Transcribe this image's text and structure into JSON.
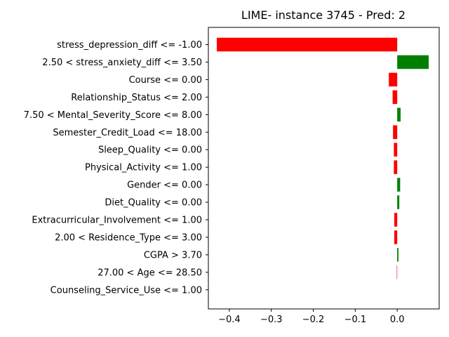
{
  "chart_data": {
    "type": "bar",
    "orientation": "horizontal",
    "title": "LIME- instance 3745 - Pred: 2",
    "xlabel": "",
    "ylabel": "",
    "xlim": [
      -0.45,
      0.1
    ],
    "xticks": [
      -0.4,
      -0.3,
      -0.2,
      -0.1,
      0.0
    ],
    "xtick_labels": [
      "−0.4",
      "−0.3",
      "−0.2",
      "−0.1",
      "0.0"
    ],
    "grid": false,
    "positive_color": "#008000",
    "negative_color": "#ff0000",
    "categories": [
      "stress_depression_diff <= -1.00",
      "2.50 < stress_anxiety_diff <= 3.50",
      "Course <= 0.00",
      "Relationship_Status <= 2.00",
      "7.50 < Mental_Severity_Score <= 8.00",
      "Semester_Credit_Load <= 18.00",
      "Sleep_Quality <= 0.00",
      "Physical_Activity <= 1.00",
      "Gender <= 0.00",
      "Diet_Quality <= 0.00",
      "Extracurricular_Involvement <= 1.00",
      "2.00 < Residence_Type <= 3.00",
      "CGPA > 3.70",
      "27.00 < Age <= 28.50",
      "Counseling_Service_Use <= 1.00"
    ],
    "values": [
      -0.43,
      0.075,
      -0.02,
      -0.011,
      0.008,
      -0.01,
      -0.008,
      -0.008,
      0.007,
      0.005,
      -0.007,
      -0.007,
      0.003,
      -0.001,
      0.0
    ]
  }
}
